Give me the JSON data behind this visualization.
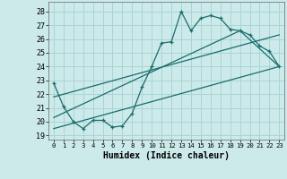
{
  "xlabel": "Humidex (Indice chaleur)",
  "background_color": "#cceaea",
  "grid_color": "#aad4d4",
  "line_color": "#1a6b6b",
  "xlim": [
    -0.5,
    23.5
  ],
  "ylim": [
    18.7,
    28.7
  ],
  "yticks": [
    19,
    20,
    21,
    22,
    23,
    24,
    25,
    26,
    27,
    28
  ],
  "xticks": [
    0,
    1,
    2,
    3,
    4,
    5,
    6,
    7,
    8,
    9,
    10,
    11,
    12,
    13,
    14,
    15,
    16,
    17,
    18,
    19,
    20,
    21,
    22,
    23
  ],
  "series1_x": [
    0,
    1,
    2,
    3,
    4,
    5,
    6,
    7,
    8,
    9,
    10,
    11,
    12,
    13,
    14,
    15,
    16,
    17,
    18,
    19,
    20,
    21,
    22,
    23
  ],
  "series1_y": [
    22.8,
    21.1,
    20.0,
    19.5,
    20.1,
    20.1,
    19.6,
    19.7,
    20.6,
    22.5,
    24.0,
    25.7,
    25.8,
    28.0,
    26.6,
    27.5,
    27.7,
    27.5,
    26.7,
    26.6,
    26.3,
    25.5,
    25.1,
    24.0
  ],
  "series2_x": [
    0,
    23
  ],
  "series2_y": [
    19.5,
    24.0
  ],
  "series3_x": [
    0,
    23
  ],
  "series3_y": [
    21.8,
    26.3
  ],
  "series4_x": [
    0,
    19,
    23
  ],
  "series4_y": [
    20.3,
    26.6,
    24.0
  ]
}
